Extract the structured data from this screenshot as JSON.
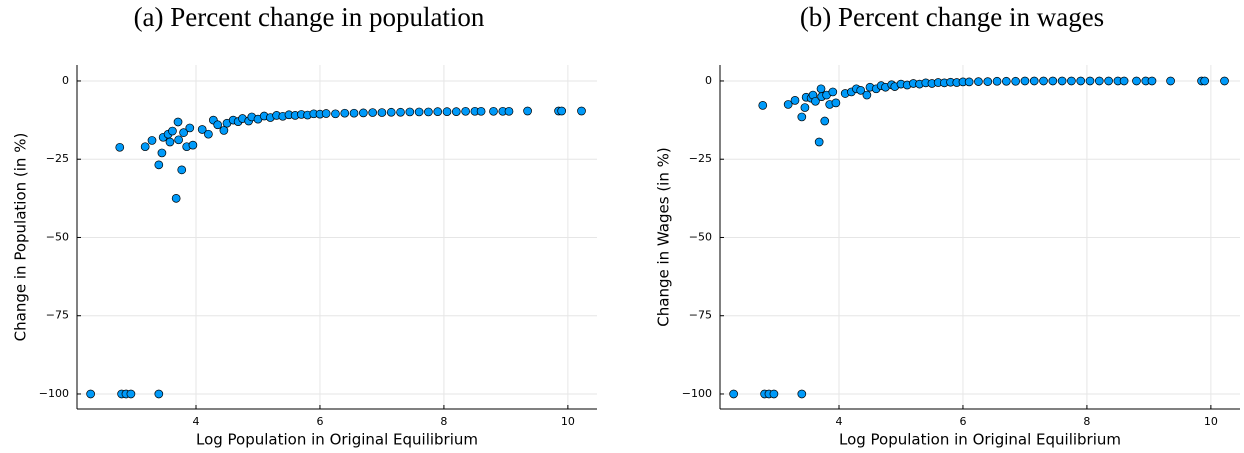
{
  "chart_data": [
    {
      "type": "scatter",
      "title": "(a) Percent change in population",
      "xlabel": "Log Population in Original Equilibrium",
      "ylabel": "Change in Population (in %)",
      "color": "#009af9",
      "grid": true,
      "xlim": [
        2.08,
        10.47
      ],
      "ylim": [
        -104.8,
        5.1
      ],
      "xticks": [
        4,
        6,
        8,
        10
      ],
      "yticks": [
        {
          "value": -100,
          "label": "−100"
        },
        {
          "value": -75,
          "label": "−75"
        },
        {
          "value": -50,
          "label": "−50"
        },
        {
          "value": -25,
          "label": "−25"
        },
        0
      ],
      "x": [
        2.3,
        2.8,
        2.87,
        2.95,
        3.4,
        2.77,
        3.18,
        3.29,
        3.4,
        3.45,
        3.47,
        3.55,
        3.58,
        3.62,
        3.68,
        3.71,
        3.72,
        3.77,
        3.8,
        3.85,
        3.9,
        3.95,
        4.1,
        4.2,
        4.28,
        4.35,
        4.45,
        4.5,
        4.6,
        4.68,
        4.75,
        4.85,
        4.9,
        5.0,
        5.1,
        5.2,
        5.3,
        5.4,
        5.5,
        5.6,
        5.7,
        5.8,
        5.9,
        6.0,
        6.1,
        6.25,
        6.4,
        6.55,
        6.7,
        6.85,
        7.0,
        7.15,
        7.3,
        7.45,
        7.6,
        7.75,
        7.9,
        8.05,
        8.2,
        8.35,
        8.5,
        8.6,
        8.8,
        8.95,
        9.05,
        9.35,
        9.85,
        9.9,
        10.22
      ],
      "values": [
        -100,
        -100,
        -100,
        -100,
        -100,
        -21.2,
        -21,
        -19,
        -26.8,
        -23,
        -18,
        -17,
        -19.5,
        -16,
        -37.5,
        -13.1,
        -18.8,
        -28.4,
        -16.5,
        -21,
        -15,
        -20.5,
        -15.5,
        -17,
        -12.5,
        -14,
        -15.8,
        -13.5,
        -12.5,
        -13,
        -12,
        -12.8,
        -11.5,
        -12.2,
        -11.2,
        -11.7,
        -11,
        -11.3,
        -10.8,
        -11,
        -10.7,
        -10.9,
        -10.5,
        -10.6,
        -10.4,
        -10.5,
        -10.3,
        -10.3,
        -10.2,
        -10.1,
        -10.1,
        -10,
        -10,
        -9.9,
        -9.9,
        -9.9,
        -9.8,
        -9.8,
        -9.8,
        -9.7,
        -9.7,
        -9.7,
        -9.7,
        -9.7,
        -9.7,
        -9.6,
        -9.6,
        -9.6,
        -9.6
      ]
    },
    {
      "type": "scatter",
      "title": "(b) Percent change in wages",
      "xlabel": "Log Population in Original Equilibrium",
      "ylabel": "Change in Wages (in %)",
      "color": "#009af9",
      "grid": true,
      "xlim": [
        2.08,
        10.47
      ],
      "ylim": [
        -104.8,
        5.1
      ],
      "xticks": [
        4,
        6,
        8,
        10
      ],
      "yticks": [
        {
          "value": -100,
          "label": "−100"
        },
        {
          "value": -75,
          "label": "−75"
        },
        {
          "value": -50,
          "label": "−50"
        },
        {
          "value": -25,
          "label": "−25"
        },
        0
      ],
      "x": [
        2.3,
        2.8,
        2.87,
        2.95,
        3.4,
        2.77,
        3.18,
        3.29,
        3.4,
        3.45,
        3.47,
        3.55,
        3.58,
        3.62,
        3.68,
        3.71,
        3.72,
        3.77,
        3.8,
        3.85,
        3.9,
        3.95,
        4.1,
        4.2,
        4.28,
        4.35,
        4.45,
        4.5,
        4.6,
        4.68,
        4.75,
        4.85,
        4.9,
        5.0,
        5.1,
        5.2,
        5.3,
        5.4,
        5.5,
        5.6,
        5.7,
        5.8,
        5.9,
        6.0,
        6.1,
        6.25,
        6.4,
        6.55,
        6.7,
        6.85,
        7.0,
        7.15,
        7.3,
        7.45,
        7.6,
        7.75,
        7.9,
        8.05,
        8.2,
        8.35,
        8.5,
        8.6,
        8.8,
        8.95,
        9.05,
        9.35,
        9.85,
        9.9,
        10.22
      ],
      "values": [
        -100,
        -100,
        -100,
        -100,
        -100,
        -7.8,
        -7.5,
        -6.2,
        -11.5,
        -8.5,
        -5.2,
        -5.5,
        -4.5,
        -6.5,
        -19.5,
        -2.5,
        -5,
        -12.8,
        -4.5,
        -7.5,
        -3.5,
        -7,
        -4,
        -3.5,
        -2.5,
        -3,
        -4.5,
        -2,
        -2.5,
        -1.5,
        -2,
        -1.2,
        -1.8,
        -1,
        -1.3,
        -0.8,
        -1,
        -0.6,
        -0.8,
        -0.5,
        -0.6,
        -0.4,
        -0.5,
        -0.3,
        -0.3,
        -0.2,
        -0.2,
        -0.1,
        -0.1,
        -0.1,
        0,
        0,
        0,
        0,
        0,
        0,
        0,
        0,
        0,
        0,
        0,
        0,
        0,
        0,
        0,
        0,
        0,
        0,
        0
      ]
    }
  ]
}
